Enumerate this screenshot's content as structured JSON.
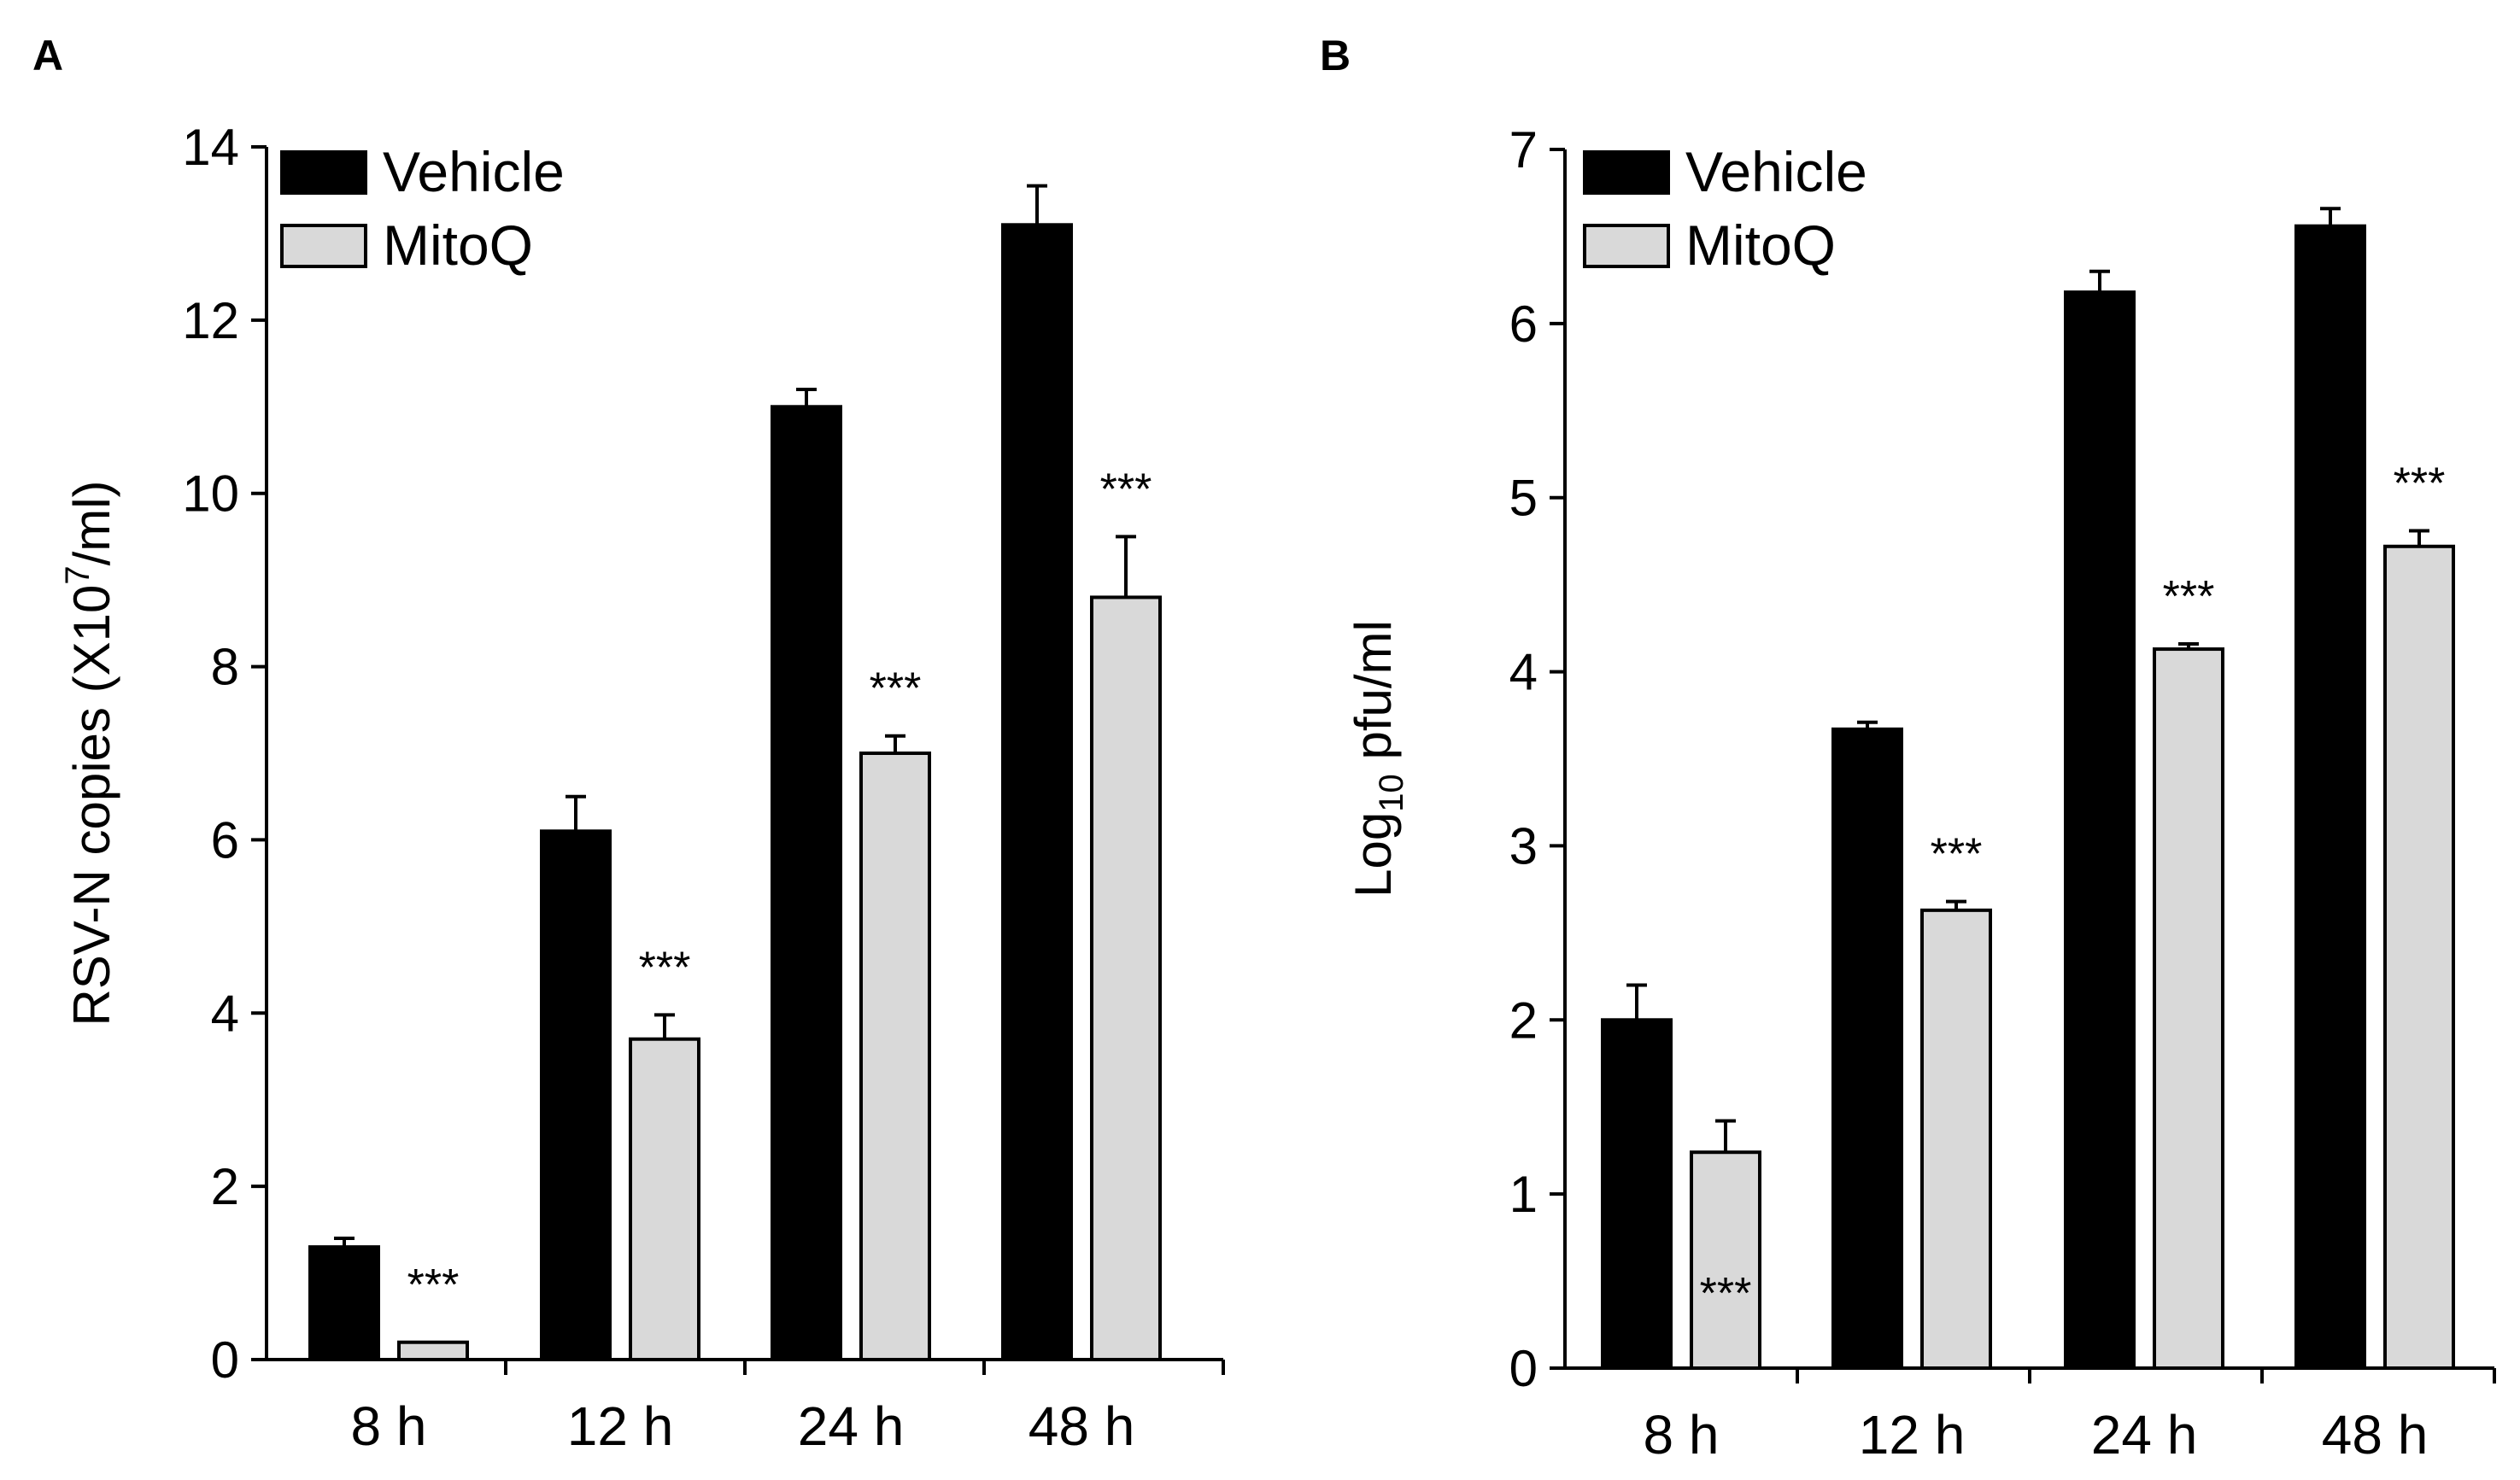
{
  "chart_data": [
    {
      "panel": "A",
      "type": "bar",
      "categories": [
        "8 h",
        "12 h",
        "24 h",
        "48 h"
      ],
      "ylabel_main": "RSV-N copies (X10",
      "ylabel_sup": "7",
      "ylabel_tail": "/ml)",
      "ylim": [
        0,
        14
      ],
      "yticks": [
        0,
        2,
        4,
        6,
        8,
        10,
        12,
        14
      ],
      "grid": false,
      "legend_position": "top-left",
      "series": [
        {
          "name": "Vehicle",
          "color": "#000000",
          "values": [
            1.3,
            6.1,
            11.0,
            13.1
          ],
          "errors": [
            0.1,
            0.4,
            0.2,
            0.45
          ]
        },
        {
          "name": "MitoQ",
          "color": "#d9d9d9",
          "values": [
            0.2,
            3.7,
            7.0,
            8.8
          ],
          "errors": [
            0.0,
            0.28,
            0.2,
            0.7
          ]
        }
      ],
      "annotations": [
        "***",
        "***",
        "***",
        "***"
      ]
    },
    {
      "panel": "B",
      "type": "bar",
      "categories": [
        "8 h",
        "12 h",
        "24 h",
        "48 h"
      ],
      "ylabel_main": "Log",
      "ylabel_sub": "10",
      "ylabel_tail": " pfu/ml",
      "ylim": [
        0,
        7
      ],
      "yticks": [
        0,
        1,
        2,
        3,
        4,
        5,
        6,
        7
      ],
      "grid": false,
      "legend_position": "top-left",
      "series": [
        {
          "name": "Vehicle",
          "color": "#000000",
          "values": [
            2.0,
            3.67,
            6.18,
            6.56
          ],
          "errors": [
            0.2,
            0.04,
            0.12,
            0.1
          ]
        },
        {
          "name": "MitoQ",
          "color": "#d9d9d9",
          "values": [
            1.24,
            2.63,
            4.13,
            4.72
          ],
          "errors": [
            0.18,
            0.05,
            0.03,
            0.09
          ]
        }
      ],
      "annotations": [
        "***",
        "***",
        "***",
        "***"
      ]
    }
  ]
}
